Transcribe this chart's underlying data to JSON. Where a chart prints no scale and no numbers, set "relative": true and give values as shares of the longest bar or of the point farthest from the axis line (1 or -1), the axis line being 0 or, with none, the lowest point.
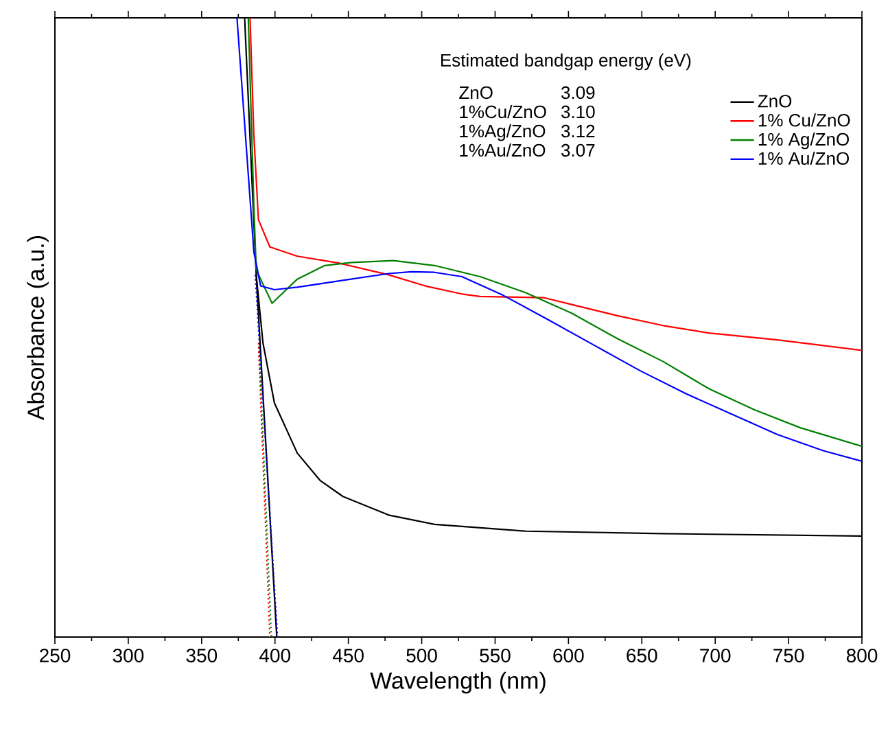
{
  "chart_data": {
    "type": "line",
    "xlabel": "Wavelength (nm)",
    "ylabel": "Absorbance (a.u.)",
    "relative": true,
    "xlim": [
      250,
      800
    ],
    "xticks": [
      250,
      300,
      350,
      400,
      450,
      500,
      550,
      600,
      650,
      700,
      750,
      800
    ],
    "legend": "top right",
    "annotations": [
      "Estimated bandgap energy (eV)",
      "ZnO",
      "3.09",
      "1%Cu/ZnO",
      "3.10",
      "1%Ag/ZnO",
      "3.12",
      "1%Au/ZnO",
      "3.07"
    ],
    "series": [
      {
        "name": "ZnO",
        "color": "#000000",
        "x": [
          379.3,
          387.2,
          391.8,
          399.6,
          415.2,
          430.7,
          446.3,
          477.5,
          508.7,
          571.0,
          664.5,
          800
        ],
        "values": [
          1.0,
          0.585,
          0.475,
          0.378,
          0.297,
          0.253,
          0.227,
          0.197,
          0.182,
          0.171,
          0.167,
          0.163
        ]
      },
      {
        "name": "1% Cu/ZnO",
        "color": "#ff0000",
        "x": [
          383,
          385.6,
          388.7,
          396.5,
          415.2,
          443.3,
          477.5,
          502.4,
          527.4,
          539.8,
          583.5,
          602.2,
          633.3,
          664.5,
          695.7,
          742.4,
          800
        ],
        "values": [
          1.0,
          0.81,
          0.674,
          0.63,
          0.615,
          0.604,
          0.585,
          0.567,
          0.554,
          0.55,
          0.548,
          0.537,
          0.519,
          0.503,
          0.491,
          0.48,
          0.463
        ]
      },
      {
        "name": "1% Ag/ZnO",
        "color": "#008000",
        "x": [
          381.8,
          385.6,
          387.2,
          398.0,
          415.2,
          433.9,
          452.6,
          480.7,
          508.7,
          539.8,
          571.0,
          602.2,
          633.3,
          664.5,
          695.7,
          726.8,
          758.0,
          800
        ],
        "values": [
          1.0,
          0.696,
          0.593,
          0.539,
          0.578,
          0.6,
          0.605,
          0.608,
          0.6,
          0.582,
          0.556,
          0.523,
          0.482,
          0.445,
          0.401,
          0.367,
          0.338,
          0.308
        ]
      },
      {
        "name": "1% Au/ZnO",
        "color": "#0000ff",
        "x": [
          374.1,
          385.6,
          390.2,
          399.6,
          415.2,
          446.3,
          477.5,
          493.1,
          508.7,
          527.4,
          555.4,
          586.6,
          617.7,
          648.9,
          680.1,
          711.2,
          742.4,
          773.6,
          800
        ],
        "values": [
          1.0,
          0.622,
          0.567,
          0.561,
          0.565,
          0.576,
          0.587,
          0.59,
          0.589,
          0.582,
          0.552,
          0.512,
          0.471,
          0.43,
          0.393,
          0.36,
          0.327,
          0.301,
          0.284
        ]
      },
      {
        "color": "#000000",
        "x": [
          387.2,
          401.2
        ],
        "values": [
          0.585,
          0
        ]
      },
      {
        "color": "#ff0000",
        "line_style": "dotted",
        "x": [
          388.7,
          396.5
        ],
        "values": [
          0.475,
          0
        ]
      },
      {
        "color": "#008000",
        "line_style": "dotted",
        "x": [
          389.2,
          397.5
        ],
        "values": [
          0.47,
          0
        ]
      },
      {
        "color": "#0000ff",
        "line_style": "dotted",
        "x": [
          386.5,
          401.7
        ],
        "values": [
          0.585,
          0
        ]
      }
    ]
  }
}
